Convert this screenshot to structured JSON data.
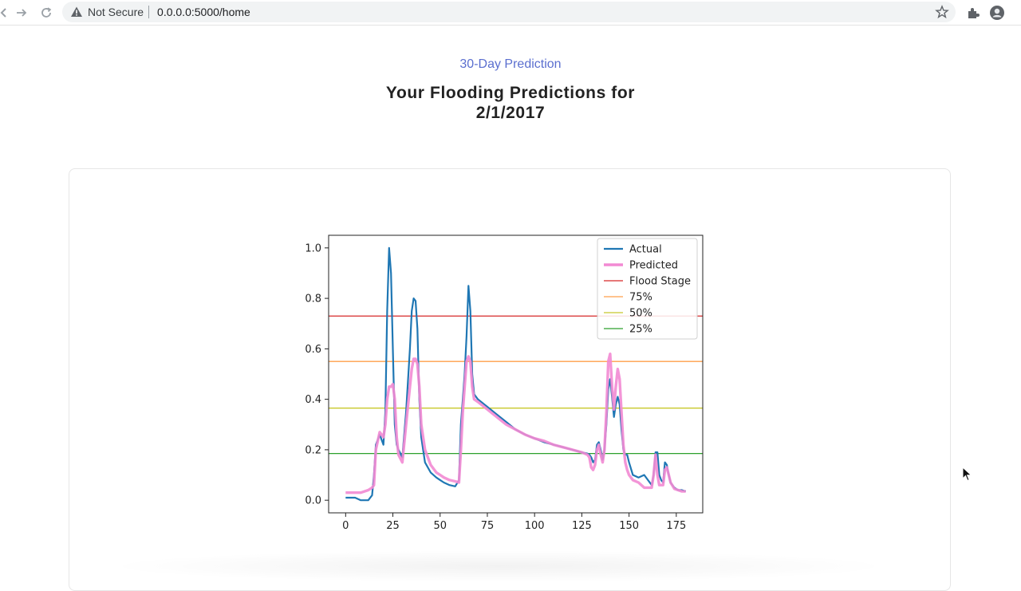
{
  "browser": {
    "security_label": "Not Secure",
    "url": "0.0.0.0:5000/home",
    "icons": [
      "back-icon",
      "forward-icon",
      "reload-icon",
      "warning-icon",
      "star-icon",
      "extensions-icon",
      "profile-icon"
    ]
  },
  "page": {
    "subtitle": "30-Day Prediction",
    "title_line1": "Your Flooding Predictions for",
    "title_line2": "2/1/2017"
  },
  "chart_data": {
    "type": "line",
    "title": "",
    "xlabel": "",
    "ylabel": "",
    "xlim": [
      -9,
      189
    ],
    "ylim": [
      -0.05,
      1.05
    ],
    "x_ticks": [
      0,
      25,
      50,
      75,
      100,
      125,
      150,
      175
    ],
    "y_ticks": [
      0.0,
      0.2,
      0.4,
      0.6,
      0.8,
      1.0
    ],
    "grid": false,
    "legend_position": "top-right",
    "series": [
      {
        "name": "Actual",
        "color": "#1f77b4",
        "x": [
          0,
          5,
          8,
          12,
          14,
          15,
          16,
          18,
          20,
          21,
          22,
          23,
          24,
          25,
          26,
          27,
          28,
          30,
          32,
          34,
          35,
          36,
          37,
          38,
          39,
          40,
          42,
          45,
          48,
          50,
          52,
          55,
          58,
          60,
          61,
          62,
          63,
          64,
          65,
          66,
          67,
          68,
          70,
          75,
          80,
          85,
          90,
          95,
          100,
          105,
          110,
          115,
          120,
          125,
          128,
          129,
          130,
          131,
          132,
          133,
          134,
          135,
          136,
          137,
          138,
          139,
          140,
          141,
          142,
          143,
          144,
          145,
          146,
          147,
          148,
          149,
          150,
          152,
          155,
          158,
          160,
          162,
          163,
          164,
          165,
          166,
          167,
          168,
          169,
          170,
          171,
          172,
          174,
          176,
          178,
          180
        ],
        "y": [
          0.01,
          0.01,
          0.0,
          0.0,
          0.02,
          0.1,
          0.22,
          0.26,
          0.22,
          0.35,
          0.75,
          1.0,
          0.9,
          0.6,
          0.3,
          0.22,
          0.2,
          0.17,
          0.35,
          0.6,
          0.75,
          0.8,
          0.79,
          0.68,
          0.4,
          0.25,
          0.15,
          0.11,
          0.09,
          0.08,
          0.07,
          0.06,
          0.055,
          0.08,
          0.3,
          0.4,
          0.5,
          0.65,
          0.85,
          0.75,
          0.5,
          0.42,
          0.4,
          0.37,
          0.34,
          0.31,
          0.28,
          0.26,
          0.245,
          0.23,
          0.22,
          0.21,
          0.2,
          0.19,
          0.185,
          0.18,
          0.17,
          0.15,
          0.16,
          0.22,
          0.23,
          0.2,
          0.16,
          0.2,
          0.3,
          0.44,
          0.48,
          0.41,
          0.33,
          0.38,
          0.41,
          0.38,
          0.28,
          0.2,
          0.18,
          0.18,
          0.15,
          0.1,
          0.09,
          0.1,
          0.08,
          0.06,
          0.1,
          0.19,
          0.19,
          0.1,
          0.08,
          0.07,
          0.15,
          0.14,
          0.1,
          0.07,
          0.05,
          0.04,
          0.04,
          0.035
        ]
      },
      {
        "name": "Predicted",
        "color": "#f28ad3",
        "x": [
          0,
          5,
          8,
          12,
          14,
          15,
          16,
          18,
          20,
          21,
          22,
          23,
          24,
          25,
          26,
          27,
          28,
          30,
          32,
          34,
          35,
          36,
          37,
          38,
          39,
          40,
          42,
          45,
          48,
          50,
          52,
          55,
          58,
          60,
          61,
          62,
          63,
          64,
          65,
          66,
          67,
          68,
          70,
          75,
          80,
          85,
          90,
          95,
          100,
          105,
          110,
          115,
          120,
          125,
          128,
          129,
          130,
          131,
          132,
          133,
          134,
          135,
          136,
          137,
          138,
          139,
          140,
          141,
          142,
          143,
          144,
          145,
          146,
          147,
          148,
          149,
          150,
          152,
          155,
          158,
          160,
          162,
          163,
          164,
          165,
          166,
          167,
          168,
          169,
          170,
          171,
          172,
          174,
          176,
          178,
          180
        ],
        "y": [
          0.03,
          0.03,
          0.03,
          0.04,
          0.05,
          0.06,
          0.2,
          0.27,
          0.25,
          0.3,
          0.4,
          0.45,
          0.45,
          0.46,
          0.4,
          0.25,
          0.18,
          0.15,
          0.3,
          0.45,
          0.52,
          0.56,
          0.56,
          0.54,
          0.45,
          0.3,
          0.2,
          0.14,
          0.11,
          0.1,
          0.09,
          0.08,
          0.075,
          0.07,
          0.2,
          0.35,
          0.45,
          0.55,
          0.57,
          0.55,
          0.45,
          0.4,
          0.39,
          0.36,
          0.33,
          0.3,
          0.28,
          0.26,
          0.245,
          0.235,
          0.22,
          0.21,
          0.2,
          0.19,
          0.18,
          0.17,
          0.13,
          0.12,
          0.14,
          0.2,
          0.22,
          0.18,
          0.15,
          0.2,
          0.35,
          0.55,
          0.58,
          0.45,
          0.36,
          0.45,
          0.52,
          0.48,
          0.35,
          0.22,
          0.15,
          0.12,
          0.1,
          0.08,
          0.07,
          0.05,
          0.05,
          0.05,
          0.1,
          0.18,
          0.1,
          0.06,
          0.06,
          0.06,
          0.12,
          0.13,
          0.1,
          0.07,
          0.045,
          0.04,
          0.035,
          0.035
        ]
      }
    ],
    "reference_lines": [
      {
        "name": "Flood Stage",
        "y": 0.73,
        "color": "#d62728"
      },
      {
        "name": "75%",
        "y": 0.55,
        "color": "#ff9f4a"
      },
      {
        "name": "50%",
        "y": 0.365,
        "color": "#c8c82a"
      },
      {
        "name": "25%",
        "y": 0.185,
        "color": "#2ca02c"
      }
    ],
    "legend": [
      "Actual",
      "Predicted",
      "Flood Stage",
      "75%",
      "50%",
      "25%"
    ]
  }
}
